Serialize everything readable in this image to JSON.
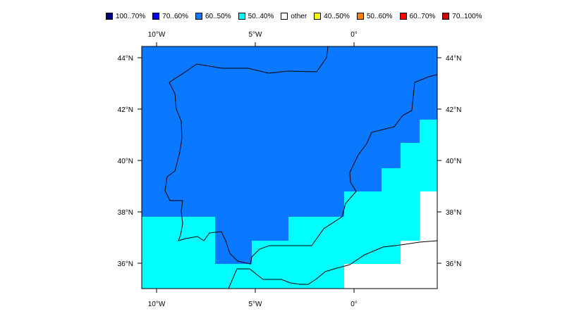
{
  "legend": {
    "items": [
      {
        "label": "100..70%",
        "color": "#00007f"
      },
      {
        "label": "70..60%",
        "color": "#0000ff"
      },
      {
        "label": "60..50%",
        "color": "#0a78ff"
      },
      {
        "label": "50..40%",
        "color": "#00ffff"
      },
      {
        "label": "other",
        "color": "#ffffff"
      },
      {
        "label": "40..50%",
        "color": "#ffff00"
      },
      {
        "label": "50..60%",
        "color": "#ff7f00"
      },
      {
        "label": "60..70%",
        "color": "#ff0000"
      },
      {
        "label": "70..100%",
        "color": "#cc0000"
      }
    ]
  },
  "axes": {
    "x_ticks": [
      "10°W",
      "5°W",
      "0°"
    ],
    "y_ticks": [
      "44°N",
      "42°N",
      "40°N",
      "38°N",
      "36°N"
    ]
  },
  "regions": {
    "base": "60..50%",
    "south_zone": "50..40%",
    "southeast_corner": "other"
  }
}
